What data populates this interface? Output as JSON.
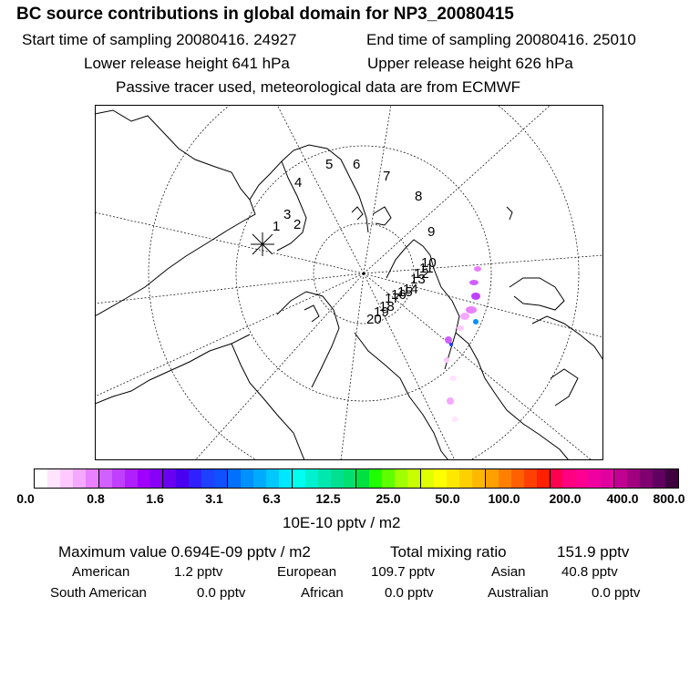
{
  "header": {
    "title": "BC  source contributions in global domain for NP3_20080415",
    "start_time": "Start time of sampling 20080416. 24927",
    "end_time": "End time of sampling 20080416. 25010",
    "lower_height": "Lower release height  641 hPa",
    "upper_height": "Upper release height  626 hPa",
    "tracer_note": "Passive tracer used, meteorological data are from ECMWF"
  },
  "map": {
    "trajectory_labels": [
      "1",
      "2",
      "3",
      "4",
      "5",
      "6",
      "7",
      "8",
      "9",
      "10",
      "11",
      "12",
      "13",
      "14",
      "15",
      "16",
      "17",
      "18",
      "19",
      "20"
    ],
    "release_marker": "asterisk"
  },
  "colorbar": {
    "ticks": [
      "0.0",
      "0.8",
      "1.6",
      "3.1",
      "6.3",
      "12.5",
      "25.0",
      "50.0",
      "100.0",
      "200.0",
      "400.0",
      "800.0"
    ],
    "unit": "10E-10 pptv / m2",
    "colors": [
      "#ffffff",
      "#ffe4ff",
      "#ffc8ff",
      "#f5a8ff",
      "#e880ff",
      "#d060ff",
      "#c040ff",
      "#b020ff",
      "#a000ff",
      "#8800f8",
      "#6a00f0",
      "#4a00f0",
      "#3020ff",
      "#2040ff",
      "#1050ff",
      "#0070ff",
      "#0090ff",
      "#00aaff",
      "#00c8ff",
      "#00e8ff",
      "#00fff0",
      "#00f0d0",
      "#00e8b0",
      "#00e090",
      "#00e070",
      "#00e040",
      "#20ff00",
      "#60ff00",
      "#a0ff00",
      "#c8ff00",
      "#e0ff00",
      "#ffff00",
      "#ffe800",
      "#ffd000",
      "#ffb800",
      "#ffa000",
      "#ff8000",
      "#ff6000",
      "#ff4000",
      "#ff2000",
      "#ff0050",
      "#ff0080",
      "#ff0090",
      "#f000a0",
      "#e000a0",
      "#c00090",
      "#a00080",
      "#800070",
      "#600060",
      "#400040"
    ]
  },
  "stats": {
    "max_value": "Maximum value  0.694E-09 pptv / m2",
    "total_label": "Total mixing ratio",
    "total_value": "151.9 pptv",
    "regions": [
      {
        "name": "American",
        "value": "1.2 pptv"
      },
      {
        "name": "European",
        "value": "109.7 pptv"
      },
      {
        "name": "Asian",
        "value": "40.8 pptv"
      },
      {
        "name": "South American",
        "value": "0.0 pptv"
      },
      {
        "name": "African",
        "value": "0.0 pptv"
      },
      {
        "name": "Australian",
        "value": "0.0 pptv"
      }
    ]
  }
}
